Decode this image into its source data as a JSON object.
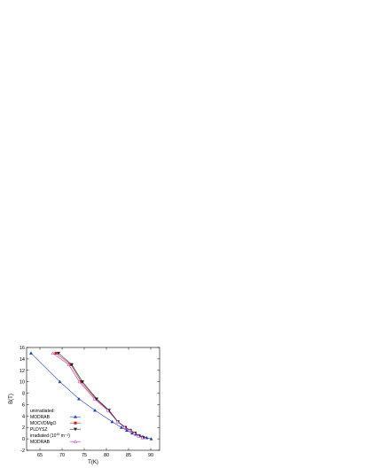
{
  "chart_data": {
    "type": "line",
    "title": "",
    "xlabel": "T(K)",
    "ylabel": "B(T)",
    "xlim": [
      62,
      92
    ],
    "ylim": [
      -2,
      16
    ],
    "xticks": [
      65,
      70,
      75,
      80,
      85,
      90
    ],
    "yticks": [
      -2,
      0,
      2,
      4,
      6,
      8,
      10,
      12,
      14,
      16
    ],
    "grid": false,
    "legend_position": "bottom-left",
    "legend_groups": [
      {
        "heading": "unirradiated:",
        "heading_sup": "",
        "heading_tail": ""
      },
      {
        "heading": "irradiated (10",
        "heading_sup": "15",
        "heading_tail": " m⁻²)"
      }
    ],
    "series": [
      {
        "name": "MODRAB",
        "group": 0,
        "color": "#1f3fcc",
        "marker": "triangle-up",
        "filled": true,
        "x": [
          63.0,
          69.5,
          73.8,
          77.4,
          81.3,
          83.4,
          84.6,
          85.8,
          86.6,
          87.4,
          88.2,
          89.1,
          90.1
        ],
        "y": [
          15.0,
          10.0,
          7.0,
          5.0,
          3.0,
          2.0,
          1.5,
          1.0,
          0.8,
          0.6,
          0.4,
          0.2,
          0.0
        ]
      },
      {
        "name": "MOCVDMgO",
        "group": 0,
        "color": "#cc1f1f",
        "marker": "square",
        "filled": true,
        "x": [
          68.6,
          72.0,
          74.3,
          77.6,
          80.5,
          82.6,
          84.3,
          85.4,
          86.4,
          87.3,
          88.3
        ],
        "y": [
          15.0,
          13.0,
          10.0,
          7.0,
          5.0,
          3.0,
          2.0,
          1.5,
          1.0,
          0.5,
          0.2
        ]
      },
      {
        "name": "PLDYSZ",
        "group": 0,
        "color": "#222222",
        "marker": "triangle-down",
        "filled": true,
        "x": [
          69.2,
          72.2,
          74.6,
          77.8,
          80.6,
          82.6,
          84.3,
          85.4,
          86.5,
          87.4,
          88.4
        ],
        "y": [
          15.0,
          13.0,
          10.0,
          7.0,
          5.0,
          3.0,
          2.0,
          1.5,
          1.0,
          0.5,
          0.2
        ]
      },
      {
        "name": "MODRAB",
        "group": 1,
        "color": "#b030b0",
        "marker": "triangle-up",
        "filled": false,
        "x": [
          67.9,
          71.5,
          73.9,
          77.3,
          80.3,
          82.5,
          84.1,
          85.3,
          86.3,
          87.2,
          88.1
        ],
        "y": [
          15.0,
          13.0,
          10.0,
          7.0,
          5.0,
          3.0,
          2.0,
          1.5,
          1.0,
          0.5,
          0.2
        ]
      }
    ]
  }
}
